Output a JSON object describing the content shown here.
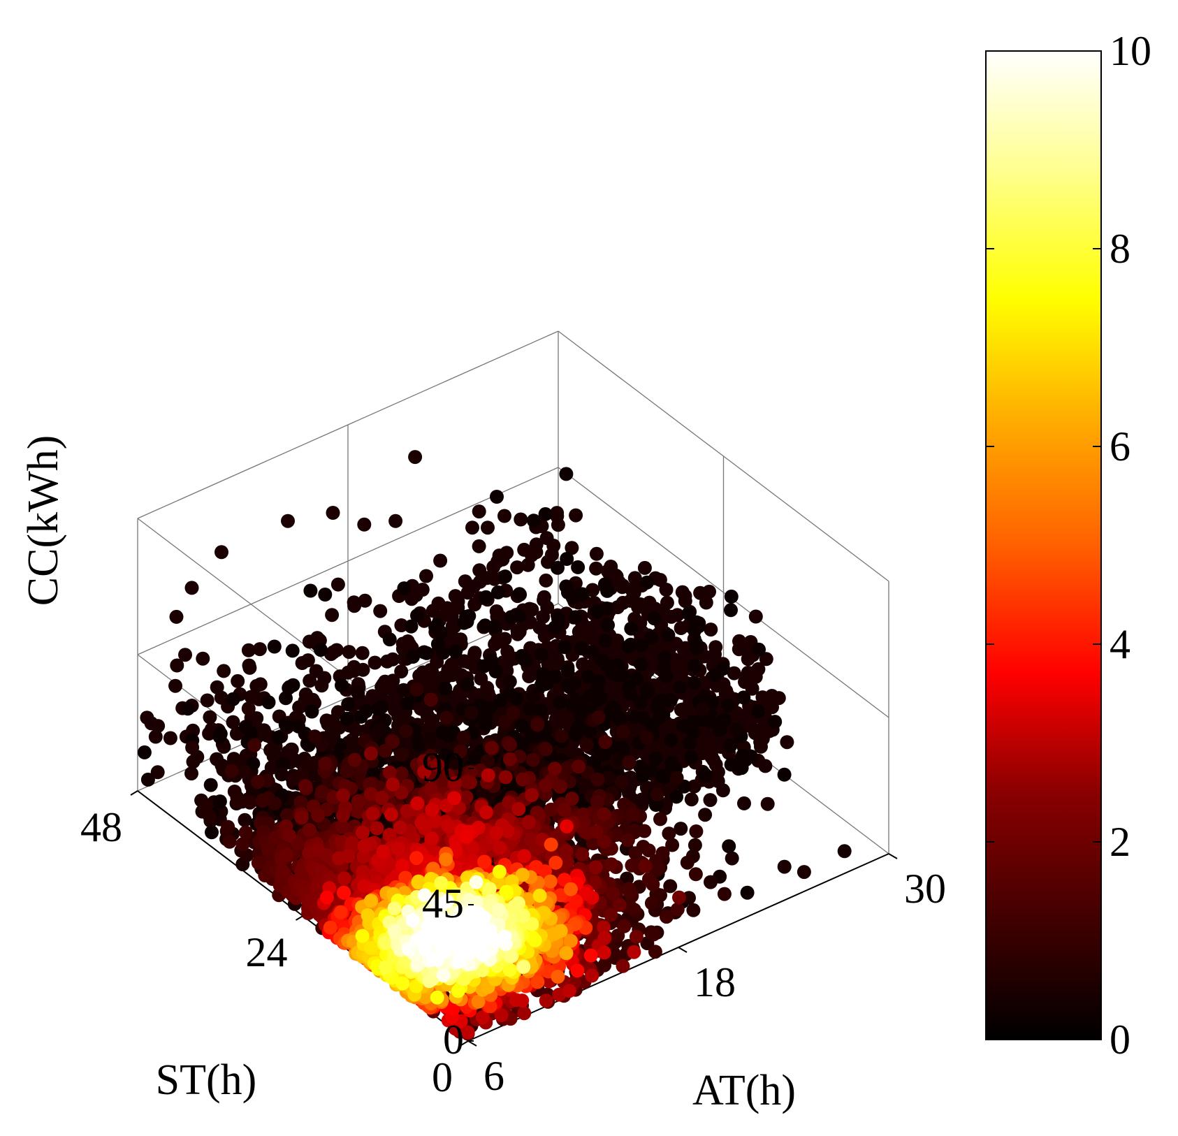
{
  "chart_data": {
    "type": "scatter",
    "subtype": "3d-scatter-density-colored",
    "title": "",
    "xlabel": "AT(h)",
    "ylabel": "ST(h)",
    "zlabel": "CC(kWh)",
    "x_ticks": [
      "6",
      "18",
      "30"
    ],
    "y_ticks": [
      "0",
      "24",
      "48"
    ],
    "z_ticks": [
      "0",
      "45",
      "90"
    ],
    "xlim": [
      6,
      30
    ],
    "ylim": [
      0,
      48
    ],
    "zlim": [
      0,
      90
    ],
    "colorbar": {
      "ticks": [
        "0",
        "2",
        "4",
        "6",
        "8",
        "10"
      ],
      "range": [
        0,
        10
      ],
      "colormap": "hot",
      "colors": [
        "#000000",
        "#550000",
        "#aa0000",
        "#ff0000",
        "#ff5500",
        "#ffaa00",
        "#ffff00",
        "#ffff80",
        "#ffffff"
      ]
    },
    "point_color": "#1a0000",
    "density_core": {
      "at": 10,
      "st": 12,
      "cc": 5
    },
    "estimated_points": 6000
  }
}
